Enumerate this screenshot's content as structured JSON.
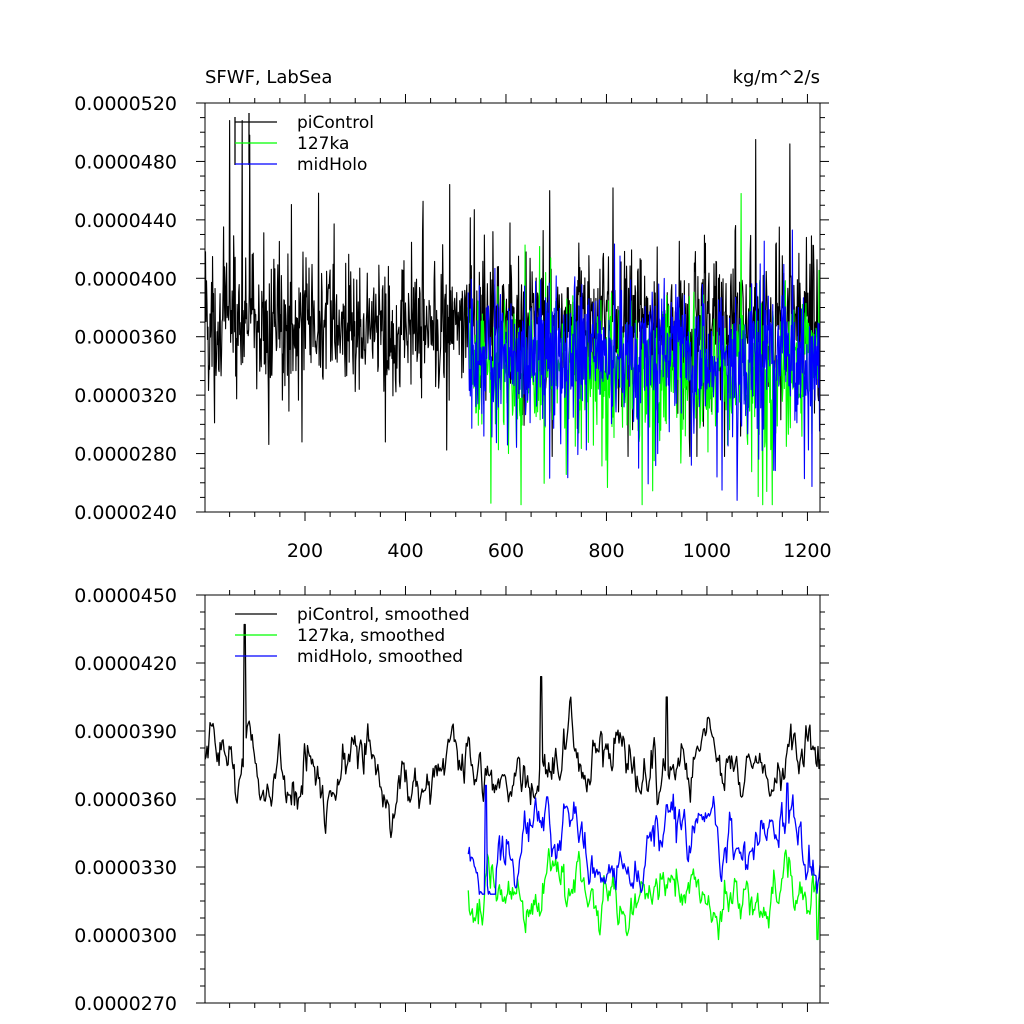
{
  "chart_data": [
    {
      "type": "line",
      "title": "SFWF, LabSea",
      "units": "kg/m^2/s",
      "xlim": [
        1,
        1225
      ],
      "ylim": [
        2.4e-05,
        5.2e-05
      ],
      "xticks": [
        200,
        400,
        600,
        800,
        1000,
        1200
      ],
      "xticklabels": [
        "200",
        "400",
        "600",
        "800",
        "1000",
        "1200"
      ],
      "yticks": [
        2.4e-05,
        2.8e-05,
        3.2e-05,
        3.6e-05,
        4e-05,
        4.4e-05,
        4.8e-05,
        5.2e-05
      ],
      "yticklabels": [
        "0.0000240",
        "0.0000280",
        "0.0000320",
        "0.0000360",
        "0.0000400",
        "0.0000440",
        "0.0000480",
        "0.0000520"
      ],
      "legend_position": "top-left",
      "series": [
        {
          "name": "piControl",
          "color": "#000000",
          "x_start": 1,
          "x_end": 1225,
          "mean": 3.68e-05,
          "amplitude": 3.8e-06,
          "peak_max": 5.08e-05,
          "peak_min": 2.78e-05,
          "highlights": [
            [
              50,
              5.08e-05
            ],
            [
              75,
              5.08e-05
            ],
            [
              90,
              4.98e-05
            ],
            [
              1097,
              4.95e-05
            ],
            [
              1165,
              4.92e-05
            ]
          ]
        },
        {
          "name": "127ka",
          "color": "#00ff00",
          "x_start": 525,
          "x_end": 1225,
          "mean": 3.38e-05,
          "amplitude": 4e-06,
          "peak_max": 4.58e-05,
          "peak_min": 2.45e-05,
          "highlights": [
            [
              570,
              2.46e-05
            ],
            [
              1068,
              4.58e-05
            ],
            [
              1130,
              2.45e-05
            ]
          ]
        },
        {
          "name": "midHolo",
          "color": "#0000ff",
          "x_start": 525,
          "x_end": 1225,
          "mean": 3.45e-05,
          "amplitude": 3.6e-06,
          "peak_max": 4.35e-05,
          "peak_min": 2.46e-05,
          "highlights": [
            [
              1030,
              2.55e-05
            ],
            [
              1060,
              2.48e-05
            ],
            [
              1170,
              4.33e-05
            ]
          ]
        }
      ]
    },
    {
      "type": "line",
      "xlim": [
        1,
        1225
      ],
      "ylim": [
        2.7e-05,
        4.5e-05
      ],
      "xticks": [
        200,
        400,
        600,
        800,
        1000,
        1200
      ],
      "yticks": [
        2.7e-05,
        3e-05,
        3.3e-05,
        3.6e-05,
        3.9e-05,
        4.2e-05,
        4.5e-05
      ],
      "yticklabels": [
        "0.0000270",
        "0.0000300",
        "0.0000330",
        "0.0000360",
        "0.0000390",
        "0.0000420",
        "0.0000450"
      ],
      "legend_position": "top-left",
      "series": [
        {
          "name": "piControl, smoothed",
          "color": "#000000",
          "x_start": 1,
          "x_end": 1225,
          "mean": 3.72e-05,
          "amplitude": 1.2e-06,
          "peak_max": 4.37e-05,
          "peak_min": 3.43e-05,
          "highlights": [
            [
              80,
              4.37e-05
            ],
            [
              670,
              4.14e-05
            ],
            [
              920,
              4.05e-05
            ]
          ]
        },
        {
          "name": "127ka, smoothed",
          "color": "#00ff00",
          "x_start": 525,
          "x_end": 1225,
          "mean": 3.18e-05,
          "amplitude": 1.1e-06,
          "peak_max": 3.55e-05,
          "peak_min": 2.98e-05,
          "highlights": [
            [
              545,
              3.05e-05
            ],
            [
              1220,
              2.98e-05
            ]
          ]
        },
        {
          "name": "midHolo, smoothed",
          "color": "#0000ff",
          "x_start": 525,
          "x_end": 1225,
          "mean": 3.38e-05,
          "amplitude": 1.2e-06,
          "peak_max": 3.68e-05,
          "peak_min": 3.18e-05,
          "highlights": [
            [
              560,
              3.66e-05
            ],
            [
              1160,
              3.67e-05
            ]
          ]
        }
      ]
    }
  ]
}
